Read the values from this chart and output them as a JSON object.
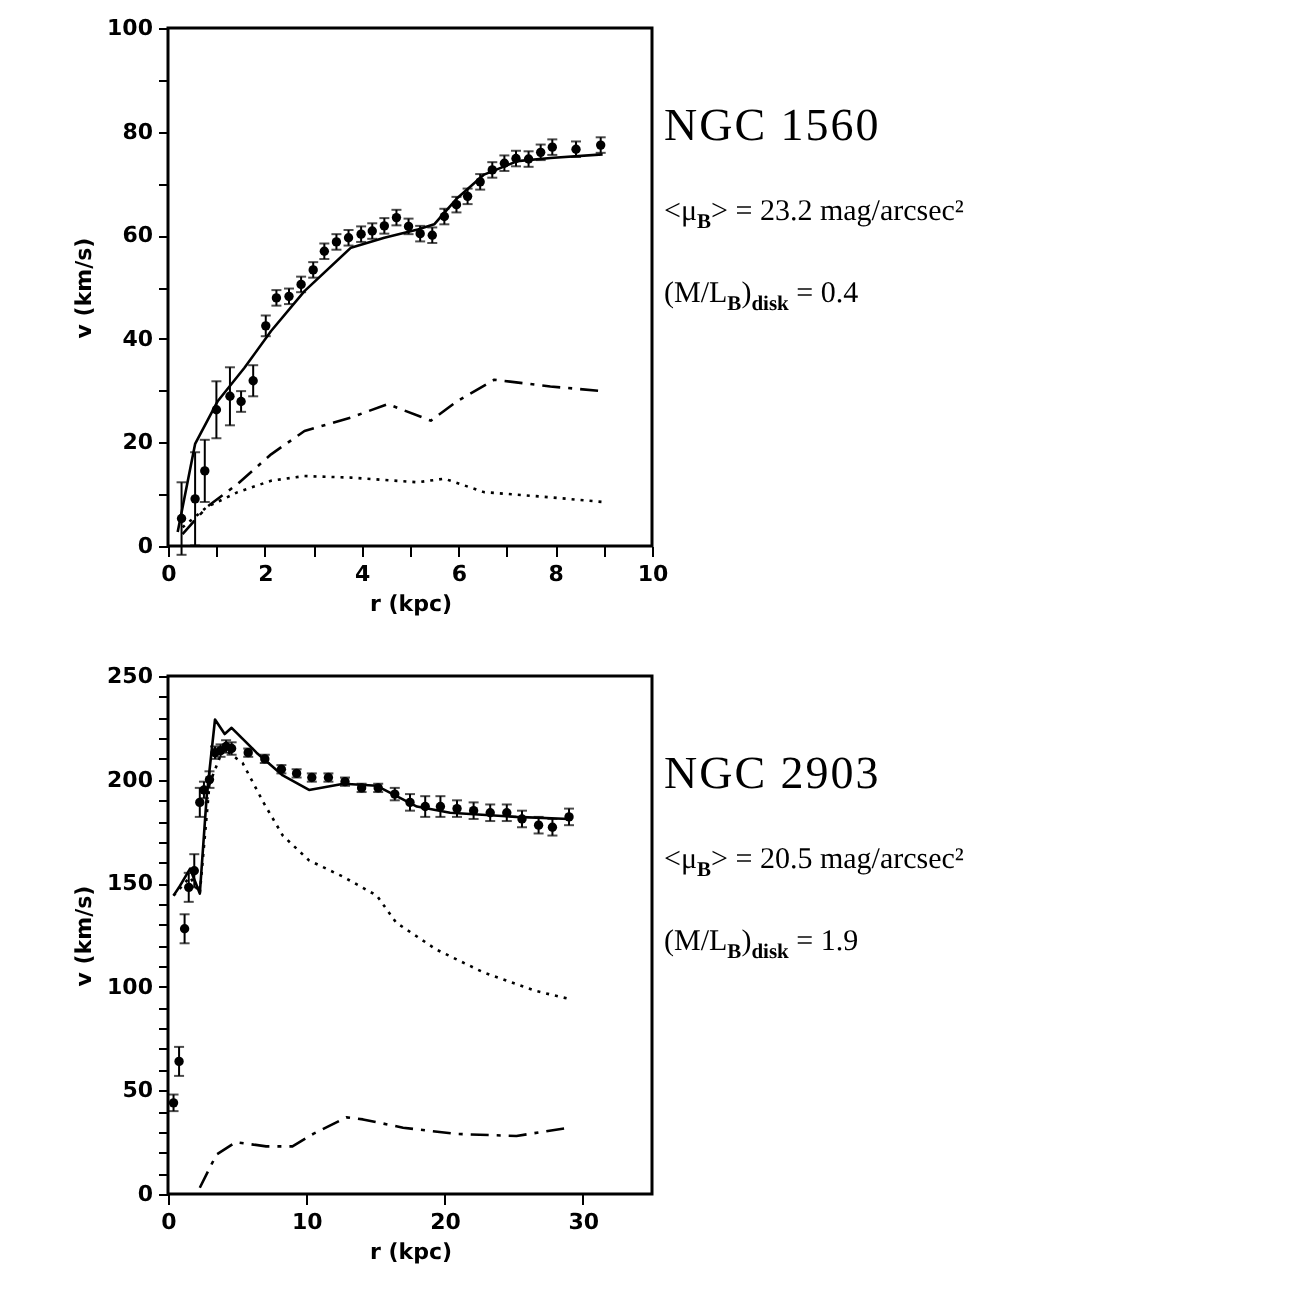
{
  "chart_data": [
    {
      "type": "scatter",
      "title": "NGC 1560",
      "annotations": [
        "<μ$_{B}$> = 23.2 mag/arcsec²",
        "(M/L$_{B}$)$_{disk}$ = 0.4"
      ],
      "xlabel": "r (kpc)",
      "ylabel": "v (km/s)",
      "xlim": [
        0,
        10
      ],
      "ylim": [
        0,
        100
      ],
      "xticks": [
        0,
        {
          "value": 1,
          "label": null
        },
        2,
        {
          "value": 3,
          "label": null
        },
        4,
        {
          "value": 5,
          "label": null
        },
        6,
        {
          "value": 7,
          "label": null
        },
        8,
        {
          "value": 9,
          "label": null
        },
        10
      ],
      "yticks": [
        0,
        {
          "value": 10,
          "label": null
        },
        20,
        {
          "value": 30,
          "label": null
        },
        40,
        {
          "value": 50,
          "label": null
        },
        60,
        {
          "value": 70,
          "label": null
        },
        80,
        {
          "value": 90,
          "label": null
        },
        100
      ],
      "grid": false,
      "series": [
        {
          "type": "scatter",
          "color": "#000000",
          "marker": "circle",
          "x": [
            0.28,
            0.56,
            0.76,
            1.0,
            1.28,
            1.51,
            1.76,
            2.02,
            2.24,
            2.5,
            2.75,
            3.0,
            3.23,
            3.48,
            3.73,
            3.99,
            4.22,
            4.47,
            4.72,
            4.97,
            5.21,
            5.46,
            5.71,
            5.96,
            6.19,
            6.45,
            6.7,
            6.95,
            7.19,
            7.45,
            7.7,
            7.94,
            8.43,
            8.94
          ],
          "values": [
            5.3,
            9.1,
            14.5,
            26.3,
            28.9,
            27.9,
            31.9,
            42.5,
            47.9,
            48.2,
            50.5,
            53.3,
            56.9,
            58.7,
            59.5,
            60.2,
            60.8,
            61.8,
            63.4,
            61.7,
            60.3,
            60.0,
            63.6,
            65.9,
            67.5,
            70.3,
            72.6,
            73.9,
            74.8,
            74.7,
            76.0,
            77.0,
            76.6,
            77.4
          ],
          "errors": [
            7,
            9,
            6,
            5.5,
            5.6,
            2,
            3,
            2,
            1.5,
            1.5,
            1.5,
            1.5,
            1.5,
            1.5,
            1.5,
            1.5,
            1.5,
            1.5,
            1.5,
            1.5,
            1.5,
            1.5,
            1.5,
            1.5,
            1.5,
            1.5,
            1.5,
            1.5,
            1.5,
            1.5,
            1.5,
            1.5,
            1.5,
            1.5
          ]
        },
        {
          "type": "line",
          "color": "#000000",
          "line_style": "solid",
          "x": [
            0.2,
            0.56,
            1.03,
            1.58,
            2.13,
            2.82,
            3.78,
            4.47,
            5.16,
            5.5,
            5.98,
            6.53,
            7.22,
            7.9,
            8.98
          ],
          "values": [
            2.7,
            19.7,
            28,
            34.4,
            41.5,
            49.2,
            57.6,
            59.5,
            61.1,
            62.1,
            67.2,
            71.7,
            74.3,
            74.9,
            75.6
          ]
        },
        {
          "type": "line",
          "color": "#000000",
          "line_style": "dashed",
          "x": [
            0.3,
            0.8,
            1.44,
            2.13,
            2.82,
            3.78,
            4.54,
            5.43,
            5.98,
            6.74,
            7.9,
            8.98
          ],
          "values": [
            2.3,
            7.5,
            12,
            17.7,
            22.2,
            24.8,
            27.4,
            24.2,
            28,
            32.1,
            30.8,
            29.9
          ]
        },
        {
          "type": "line",
          "color": "#000000",
          "line_style": "dotted",
          "x": [
            0.3,
            0.8,
            1.44,
            2.13,
            2.82,
            3.78,
            5.16,
            5.71,
            6.53,
            7.9,
            8.98
          ],
          "values": [
            3.6,
            7.5,
            10.4,
            12.6,
            13.5,
            13.2,
            12.3,
            13.0,
            10.4,
            9.4,
            8.5
          ]
        }
      ]
    },
    {
      "type": "scatter",
      "title": "NGC 2903",
      "annotations": [
        "<μ$_{B}$> = 20.5 mag/arcsec²",
        "(M/L$_{B}$)$_{disk}$ = 1.9"
      ],
      "xlabel": "r (kpc)",
      "ylabel": "v (km/s)",
      "xlim": [
        0,
        35
      ],
      "ylim": [
        0,
        250
      ],
      "xticks": [
        0,
        10,
        20,
        30
      ],
      "yticks": [
        0,
        {
          "value": 10,
          "label": null
        },
        {
          "value": 20,
          "label": null
        },
        {
          "value": 30,
          "label": null
        },
        {
          "value": 40,
          "label": null
        },
        50,
        {
          "value": 60,
          "label": null
        },
        {
          "value": 70,
          "label": null
        },
        {
          "value": 80,
          "label": null
        },
        {
          "value": 90,
          "label": null
        },
        100,
        {
          "value": 110,
          "label": null
        },
        {
          "value": 120,
          "label": null
        },
        {
          "value": 130,
          "label": null
        },
        {
          "value": 140,
          "label": null
        },
        150,
        {
          "value": 160,
          "label": null
        },
        {
          "value": 170,
          "label": null
        },
        {
          "value": 180,
          "label": null
        },
        {
          "value": 190,
          "label": null
        },
        200,
        {
          "value": 210,
          "label": null
        },
        {
          "value": 220,
          "label": null
        },
        {
          "value": 230,
          "label": null
        },
        {
          "value": 240,
          "label": null
        },
        250
      ],
      "grid": false,
      "series": [
        {
          "type": "scatter",
          "color": "#000000",
          "marker": "circle",
          "x": [
            0.4,
            0.8,
            1.2,
            1.5,
            1.9,
            2.3,
            2.6,
            3.0,
            3.4,
            3.8,
            4.2,
            4.6,
            5.8,
            7.0,
            8.2,
            9.3,
            10.4,
            11.6,
            12.8,
            14.0,
            15.2,
            16.4,
            17.5,
            18.6,
            19.7,
            20.9,
            22.1,
            23.3,
            24.5,
            25.6,
            26.8,
            27.8,
            29.0
          ],
          "values": [
            44,
            64,
            128,
            148,
            156,
            189,
            195,
            200,
            213,
            214,
            216,
            215,
            213,
            210,
            205,
            203,
            201,
            201,
            199,
            196,
            196,
            193,
            189,
            187,
            187,
            186,
            185,
            184,
            184,
            181,
            178,
            177,
            182
          ],
          "errors": [
            4,
            7,
            7,
            7,
            8,
            7,
            4,
            4,
            3,
            3,
            3,
            3,
            2,
            2,
            2,
            2,
            2,
            2,
            2,
            2,
            2,
            3,
            4,
            5,
            5,
            4,
            4,
            4,
            4,
            4,
            4,
            4,
            4
          ]
        },
        {
          "type": "line",
          "color": "#000000",
          "line_style": "solid",
          "x": [
            0.4,
            0.8,
            1.6,
            2.3,
            2.8,
            3.4,
            4.1,
            4.6,
            6.4,
            8.3,
            10.2,
            12.7,
            15.1,
            18.0,
            20.4,
            25.2,
            29.0
          ],
          "values": [
            144,
            148,
            157,
            145,
            192,
            229,
            222,
            225,
            213,
            202,
            195,
            198,
            197,
            187,
            184,
            182,
            181
          ]
        },
        {
          "type": "line",
          "color": "#000000",
          "line_style": "dotted",
          "x": [
            0.4,
            1.6,
            2.3,
            3.0,
            4.0,
            5.4,
            6.9,
            8.3,
            10.2,
            12.7,
            15.1,
            16.5,
            19.4,
            22.8,
            26.6,
            29.1
          ],
          "values": [
            144,
            153,
            145,
            198,
            215,
            208,
            189,
            173,
            161,
            153,
            144,
            131,
            118,
            107,
            98,
            94
          ]
        },
        {
          "type": "line",
          "color": "#000000",
          "line_style": "dashed",
          "x": [
            2.3,
            3.5,
            4.9,
            7.1,
            9.0,
            10.5,
            12.9,
            14.1,
            17.0,
            20.8,
            25.2,
            29.0
          ],
          "values": [
            3,
            19,
            25,
            23,
            23,
            29,
            37,
            36,
            32,
            29,
            28,
            32
          ]
        }
      ]
    }
  ]
}
